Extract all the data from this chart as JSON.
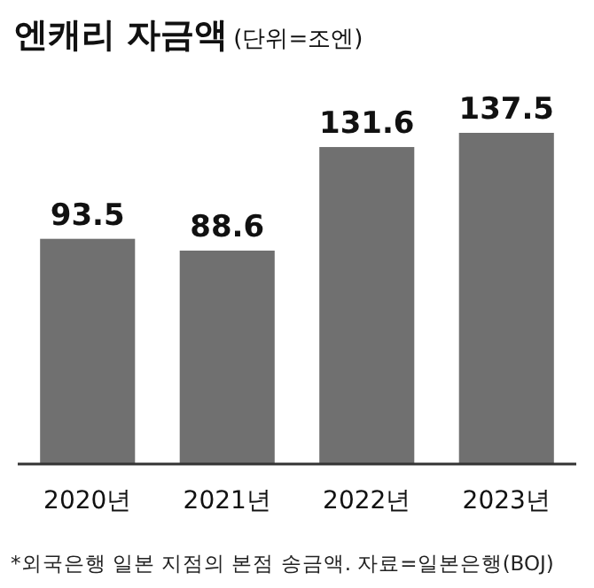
{
  "chart_data": {
    "type": "bar",
    "title": "엔캐리 자금액",
    "subtitle": "(단위=조엔)",
    "categories": [
      "2020년",
      "2021년",
      "2022년",
      "2023년"
    ],
    "values": [
      93.5,
      88.6,
      131.6,
      137.5
    ],
    "color": "#707070",
    "data_labels": true,
    "annotations": [
      "*외국은행 일본 지점의 본점 송금액. 자료=일본은행(BOJ)"
    ]
  }
}
